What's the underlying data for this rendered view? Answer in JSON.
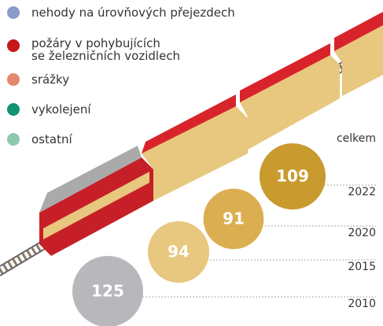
{
  "chart_data": {
    "type": "bubble",
    "legend": [
      {
        "name": "nehody na úrovňových přejezdech",
        "color": "#8a9bc9"
      },
      {
        "name": "požáry v pohybujících\nse železničních vozidlech",
        "color": "#c8161d"
      },
      {
        "name": "srážky",
        "color": "#e5876a"
      },
      {
        "name": "vykolejení",
        "color": "#129372"
      },
      {
        "name": "ostatní",
        "color": "#8dc8ad"
      }
    ],
    "total_label": "celkem",
    "categories": [
      "2010",
      "2015",
      "2020",
      "2022"
    ],
    "values": [
      125,
      94,
      91,
      109
    ],
    "colors": [
      "#b8b8bc",
      "#e8c77f",
      "#dcae52",
      "#c99a2e"
    ]
  }
}
